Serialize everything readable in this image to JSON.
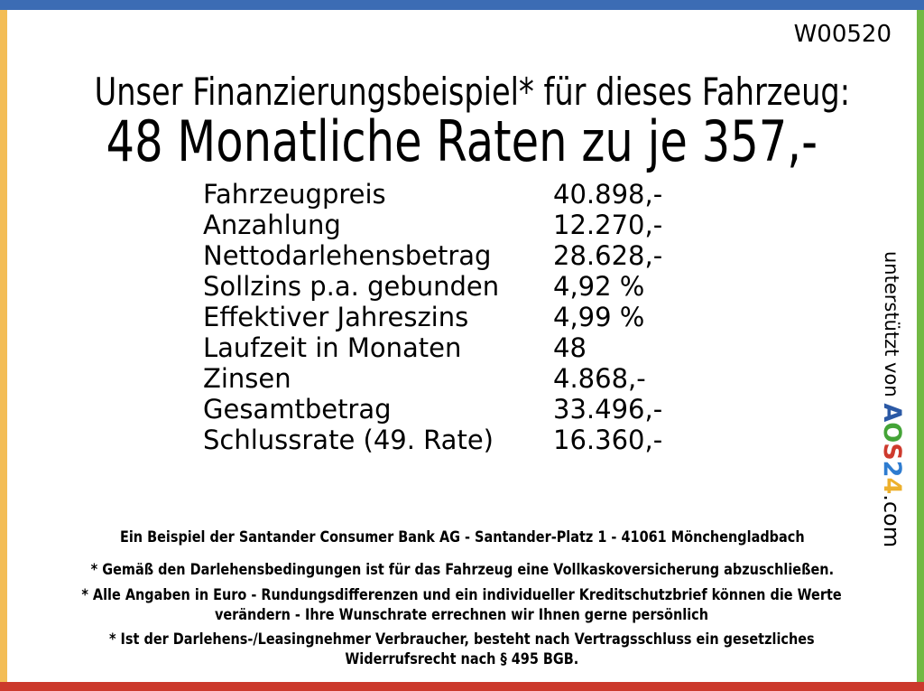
{
  "frame": {
    "top_color": "#3C6CB4",
    "left_color": "#F3BD56",
    "right_color": "#72B944",
    "bottom_color": "#CC392C"
  },
  "header": {
    "code": "W00520"
  },
  "title": {
    "line1": "Unser Finanzierungsbeispiel* für dieses Fahrzeug:",
    "line2": "48 Monatliche Raten zu je 357,-"
  },
  "finance_table": {
    "rows": [
      {
        "label": "Fahrzeugpreis",
        "value": "40.898,-"
      },
      {
        "label": "Anzahlung",
        "value": "12.270,-"
      },
      {
        "label": "Nettodarlehensbetrag",
        "value": "28.628,-"
      },
      {
        "label": "Sollzins p.a. gebunden",
        "value": "4,92 %"
      },
      {
        "label": "Effektiver Jahreszins",
        "value": "4,99 %"
      },
      {
        "label": "Laufzeit in Monaten",
        "value": "48"
      },
      {
        "label": "Zinsen",
        "value": "4.868,-"
      },
      {
        "label": "Gesamtbetrag",
        "value": "33.496,-"
      },
      {
        "label": "Schlussrate (49. Rate)",
        "value": "16.360,-"
      }
    ]
  },
  "support": {
    "prefix": "unterstützt von ",
    "logo_letters": [
      {
        "ch": "A",
        "color": "#2B59A5"
      },
      {
        "ch": "O",
        "color": "#44A437"
      },
      {
        "ch": "S",
        "color": "#CE3A2D"
      },
      {
        "ch": "2",
        "color": "#2E7CD0"
      },
      {
        "ch": "4",
        "color": "#EDB02C"
      }
    ],
    "suffix": ".com"
  },
  "footer": {
    "bank_line": "Ein Beispiel der Santander Consumer Bank AG - Santander-Platz 1 - 41061 Mönchengladbach",
    "note1": "* Gemäß den Darlehensbedingungen ist für das Fahrzeug eine Vollkaskoversicherung abzuschließen.",
    "note2_line1": "* Alle Angaben in Euro - Rundungsdifferenzen und ein individueller Kreditschutzbrief können die Werte",
    "note2_line2": "verändern - Ihre Wunschrate errechnen wir Ihnen gerne persönlich",
    "note3_line1": "* Ist der Darlehens-/Leasingnehmer Verbraucher, besteht nach Vertragsschluss ein gesetzliches",
    "note3_line2": "Widerrufsrecht nach § 495 BGB."
  }
}
